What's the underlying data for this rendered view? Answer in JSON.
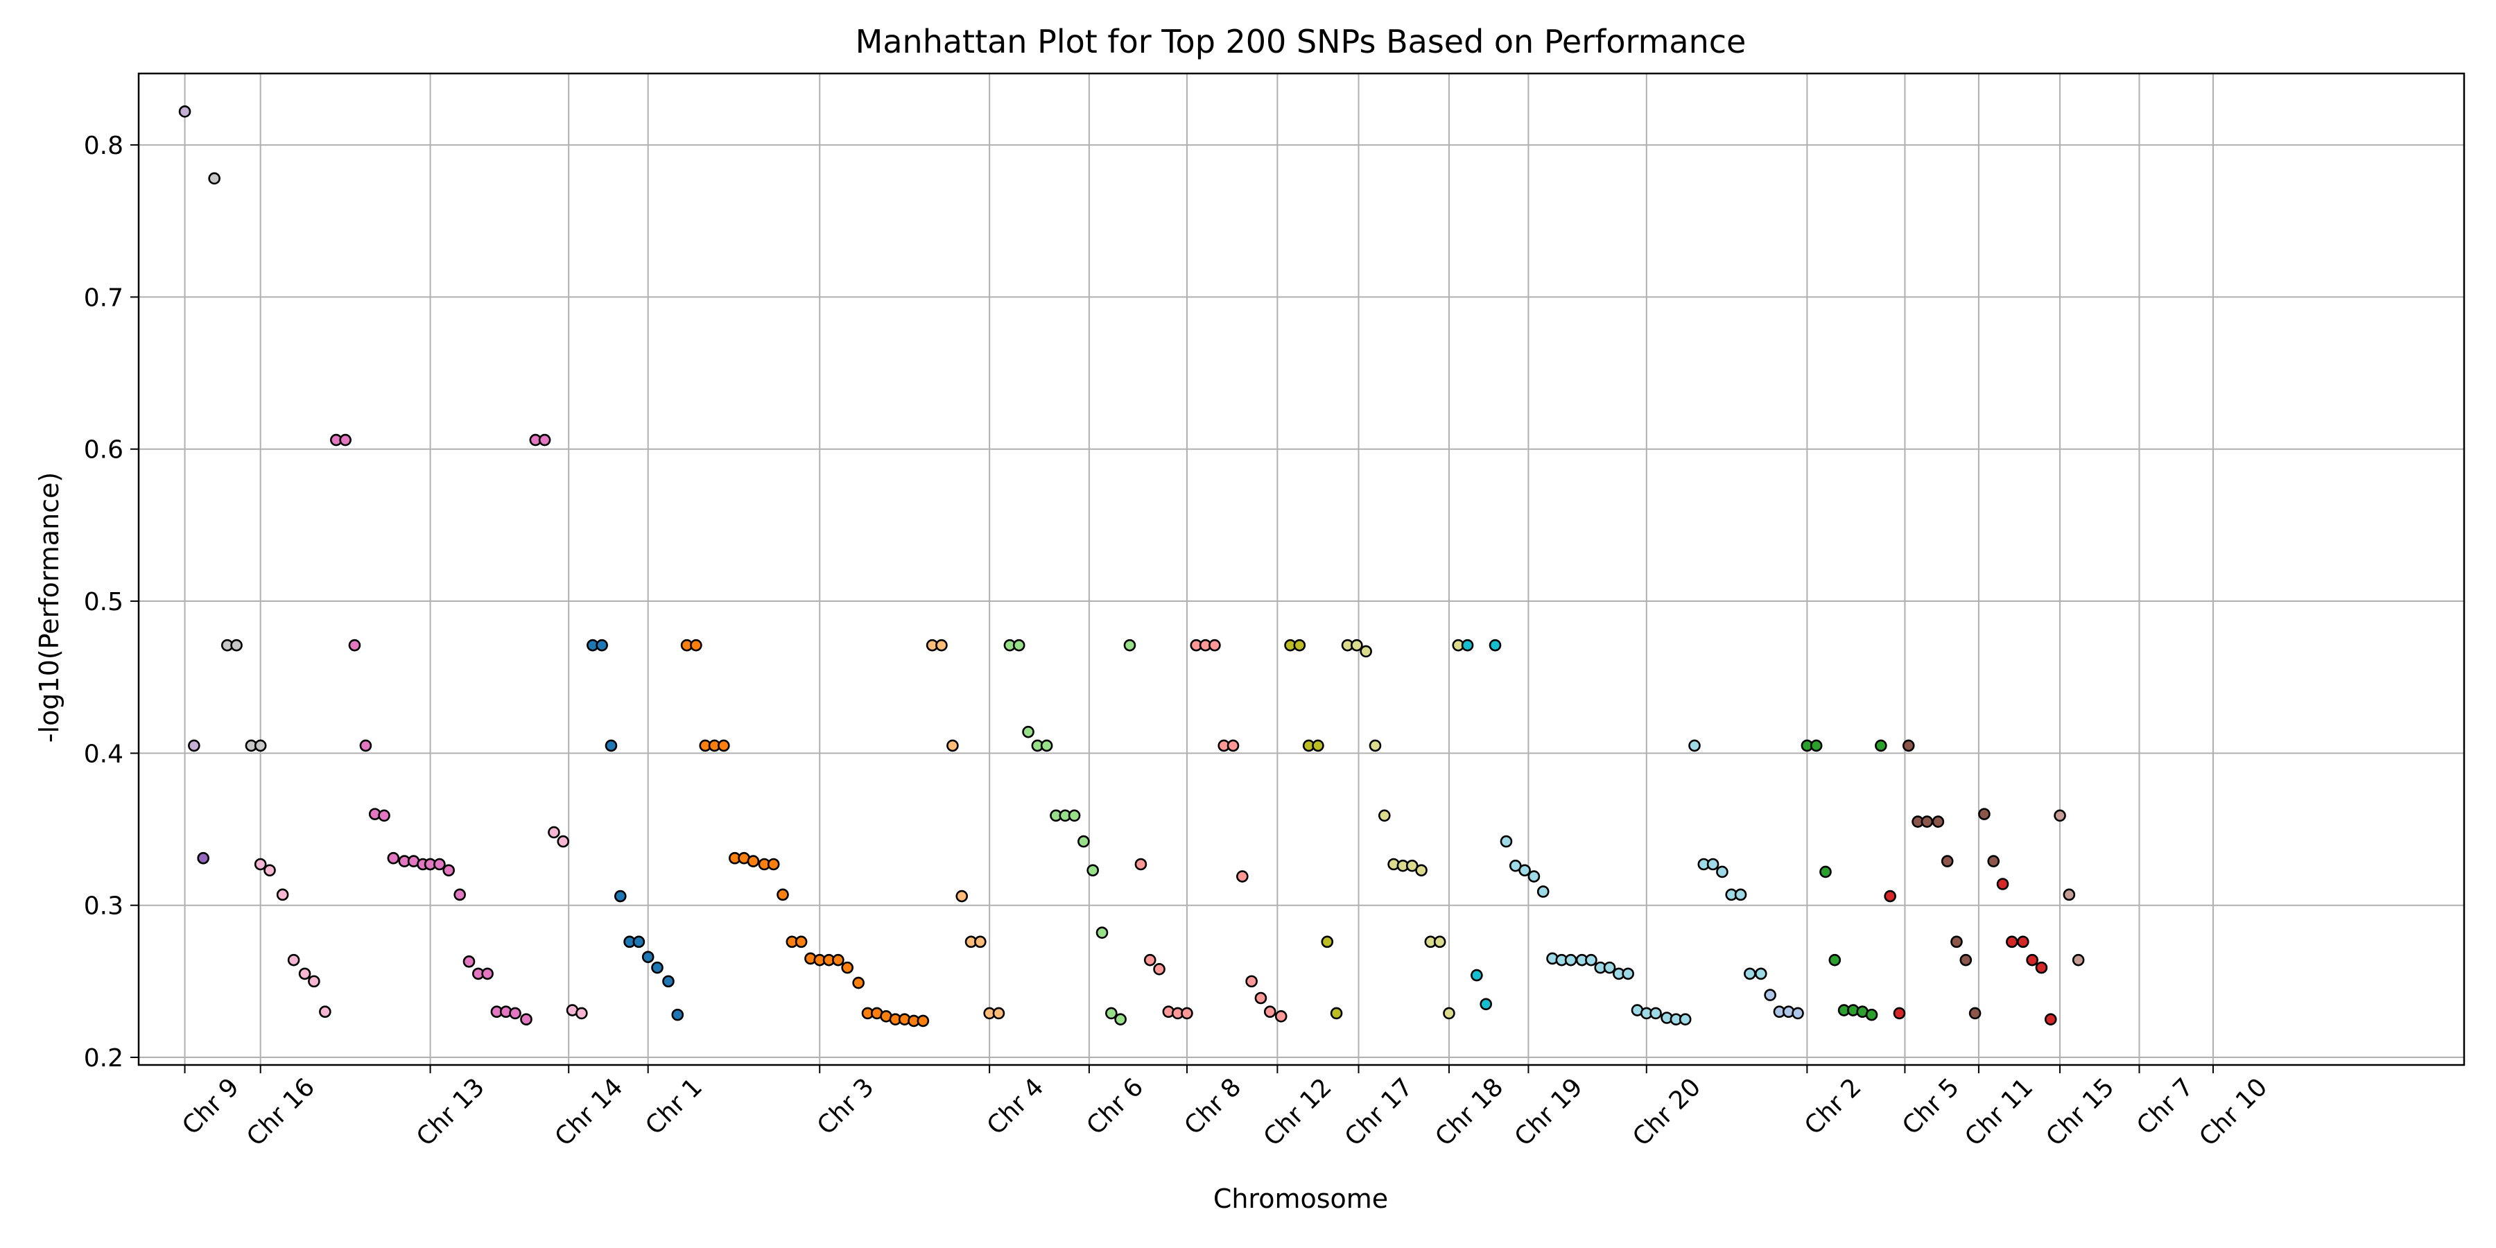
{
  "chart_data": {
    "type": "scatter",
    "title": "Manhattan Plot for Top 200 SNPs Based on Performance",
    "xlabel": "Chromosome",
    "ylabel": "-log10(Performance)",
    "xlim": [
      -25,
      1235
    ],
    "ylim": [
      0.195,
      0.847
    ],
    "yticks": [
      0.2,
      0.3,
      0.4,
      0.5,
      0.6,
      0.7,
      0.8
    ],
    "grid": true,
    "xtick_labels": [
      {
        "x": 0,
        "label": "Chr 9"
      },
      {
        "x": 41,
        "label": "Chr 16"
      },
      {
        "x": 133,
        "label": "Chr 13"
      },
      {
        "x": 208,
        "label": "Chr 14"
      },
      {
        "x": 251,
        "label": "Chr 1"
      },
      {
        "x": 344,
        "label": "Chr 3"
      },
      {
        "x": 436,
        "label": "Chr 4"
      },
      {
        "x": 490,
        "label": "Chr 6"
      },
      {
        "x": 543,
        "label": "Chr 8"
      },
      {
        "x": 592,
        "label": "Chr 12"
      },
      {
        "x": 636,
        "label": "Chr 17"
      },
      {
        "x": 685,
        "label": "Chr 18"
      },
      {
        "x": 728,
        "label": "Chr 19"
      },
      {
        "x": 792,
        "label": "Chr 20"
      },
      {
        "x": 879,
        "label": "Chr 2"
      },
      {
        "x": 932,
        "label": "Chr 5"
      },
      {
        "x": 972,
        "label": "Chr 11"
      },
      {
        "x": 1016,
        "label": "Chr 15"
      },
      {
        "x": 1059,
        "label": "Chr 7"
      },
      {
        "x": 1099,
        "label": "Chr 10"
      }
    ],
    "series": [
      {
        "color": "#c5b0d5",
        "x": [
          0,
          5
        ],
        "y": [
          0.822,
          0.405
        ]
      },
      {
        "color": "#9467bd",
        "x": [
          10
        ],
        "y": [
          0.331
        ]
      },
      {
        "color": "#c7c7c7",
        "x": [
          16,
          23,
          28,
          36,
          41
        ],
        "y": [
          0.778,
          0.471,
          0.471,
          0.405,
          0.405
        ]
      },
      {
        "color": "#f7b6d2",
        "x": [
          41,
          46,
          53,
          59,
          65,
          70,
          76
        ],
        "y": [
          0.327,
          0.323,
          0.307,
          0.264,
          0.255,
          0.25,
          0.23
        ]
      },
      {
        "color": "#e377c2",
        "x": [
          82,
          87,
          92,
          98,
          103,
          108,
          113,
          119,
          124,
          129,
          133
        ],
        "y": [
          0.606,
          0.606,
          0.471,
          0.405,
          0.36,
          0.359,
          0.331,
          0.329,
          0.329,
          0.327,
          0.327
        ]
      },
      {
        "color": "#e377c2",
        "x": [
          133,
          138,
          143,
          149,
          154,
          159,
          164,
          169,
          174,
          179,
          185,
          190,
          195
        ],
        "y": [
          0.327,
          0.327,
          0.323,
          0.307,
          0.263,
          0.255,
          0.255,
          0.23,
          0.23,
          0.229,
          0.225,
          0.606,
          0.606
        ]
      },
      {
        "color": "#f7b6d2",
        "x": [
          200,
          205,
          210,
          215
        ],
        "y": [
          0.348,
          0.342,
          0.231,
          0.229
        ]
      },
      {
        "color": "#1f77b4",
        "x": [
          221,
          226,
          231,
          236,
          241,
          246,
          251,
          256,
          262
        ],
        "y": [
          0.471,
          0.471,
          0.405,
          0.306,
          0.276,
          0.276,
          0.266,
          0.259,
          0.25
        ]
      },
      {
        "color": "#1f77b4",
        "x": [
          267
        ],
        "y": [
          0.228
        ]
      },
      {
        "color": "#ff7f0e",
        "x": [
          272,
          277,
          282,
          287,
          292,
          298,
          303,
          308,
          314,
          319,
          324,
          329,
          334,
          339,
          344
        ],
        "y": [
          0.471,
          0.471,
          0.405,
          0.405,
          0.405,
          0.331,
          0.331,
          0.329,
          0.327,
          0.327,
          0.307,
          0.276,
          0.276,
          0.265,
          0.264
        ]
      },
      {
        "color": "#ff7f0e",
        "x": [
          349,
          354,
          359,
          365,
          370,
          375,
          380,
          385,
          390,
          395,
          400
        ],
        "y": [
          0.264,
          0.264,
          0.259,
          0.249,
          0.229,
          0.229,
          0.227,
          0.225,
          0.225,
          0.224,
          0.224
        ]
      },
      {
        "color": "#ffbb78",
        "x": [
          405,
          410,
          416,
          421,
          426,
          431,
          436,
          441
        ],
        "y": [
          0.471,
          0.471,
          0.405,
          0.306,
          0.276,
          0.276,
          0.229,
          0.229
        ]
      },
      {
        "color": "#98df8a",
        "x": [
          447,
          452,
          457,
          462,
          467,
          472,
          477,
          482,
          487,
          492,
          497,
          502,
          507,
          512
        ],
        "y": [
          0.471,
          0.471,
          0.414,
          0.405,
          0.405,
          0.359,
          0.359,
          0.359,
          0.342,
          0.323,
          0.282,
          0.229,
          0.225,
          0.471
        ]
      },
      {
        "color": "#ff9896",
        "x": [
          518,
          523,
          528,
          533,
          538,
          543
        ],
        "y": [
          0.327,
          0.264,
          0.258,
          0.23,
          0.229,
          0.229
        ]
      },
      {
        "color": "#ff9896",
        "x": [
          548,
          553,
          558,
          563,
          568,
          573,
          578
        ],
        "y": [
          0.471,
          0.471,
          0.471,
          0.405,
          0.405,
          0.319,
          0.25
        ]
      },
      {
        "color": "#ff9896",
        "x": [
          583,
          588,
          594
        ],
        "y": [
          0.239,
          0.23,
          0.227
        ]
      },
      {
        "color": "#bcbd22",
        "x": [
          599,
          604,
          609,
          614,
          619,
          624
        ],
        "y": [
          0.471,
          0.471,
          0.405,
          0.405,
          0.276,
          0.229
        ]
      },
      {
        "color": "#dbdb8d",
        "x": [
          630,
          635,
          640,
          645,
          650,
          655,
          660,
          665,
          670,
          675,
          680,
          685,
          690
        ],
        "y": [
          0.471,
          0.471,
          0.467,
          0.405,
          0.359,
          0.327,
          0.326,
          0.326,
          0.323,
          0.276,
          0.276,
          0.229,
          0.471
        ]
      },
      {
        "color": "#17becf",
        "x": [
          695,
          700,
          705,
          710
        ],
        "y": [
          0.471,
          0.254,
          0.235,
          0.471
        ]
      },
      {
        "color": "#9edae5",
        "x": [
          716,
          721,
          726,
          731,
          736,
          741,
          746,
          751,
          757,
          762,
          767,
          772,
          777,
          782,
          787,
          792,
          797,
          803,
          808,
          813,
          818,
          823,
          828,
          833,
          838,
          843,
          848,
          854
        ],
        "y": [
          0.342,
          0.326,
          0.323,
          0.319,
          0.309,
          0.265,
          0.264,
          0.264,
          0.264,
          0.264,
          0.259,
          0.259,
          0.255,
          0.255,
          0.231,
          0.229,
          0.229,
          0.226,
          0.225,
          0.225,
          0.405,
          0.327,
          0.327,
          0.322,
          0.307,
          0.307,
          0.255,
          0.255
        ]
      },
      {
        "color": "#aec7e8",
        "x": [
          859,
          864,
          869,
          874
        ],
        "y": [
          0.241,
          0.23,
          0.23,
          0.229
        ]
      },
      {
        "color": "#2ca02c",
        "x": [
          879,
          884,
          889,
          894,
          899,
          904,
          909,
          914,
          919
        ],
        "y": [
          0.405,
          0.405,
          0.322,
          0.264,
          0.231,
          0.231,
          0.23,
          0.228,
          0.405
        ]
      },
      {
        "color": "#d62728",
        "x": [
          924,
          929
        ],
        "y": [
          0.306,
          0.229
        ]
      },
      {
        "color": "#8c564b",
        "x": [
          934,
          939,
          944,
          950,
          955,
          960,
          965,
          970,
          975,
          980
        ],
        "y": [
          0.405,
          0.355,
          0.355,
          0.355,
          0.329,
          0.276,
          0.264,
          0.229,
          0.36,
          0.329
        ]
      },
      {
        "color": "#d62728",
        "x": [
          985,
          990,
          996,
          1001,
          1006,
          1011
        ],
        "y": [
          0.314,
          0.276,
          0.276,
          0.264,
          0.259,
          0.225
        ]
      },
      {
        "color": "#c49c94",
        "x": [
          1016,
          1021,
          1026
        ],
        "y": [
          0.359,
          0.307,
          0.264
        ]
      }
    ]
  }
}
